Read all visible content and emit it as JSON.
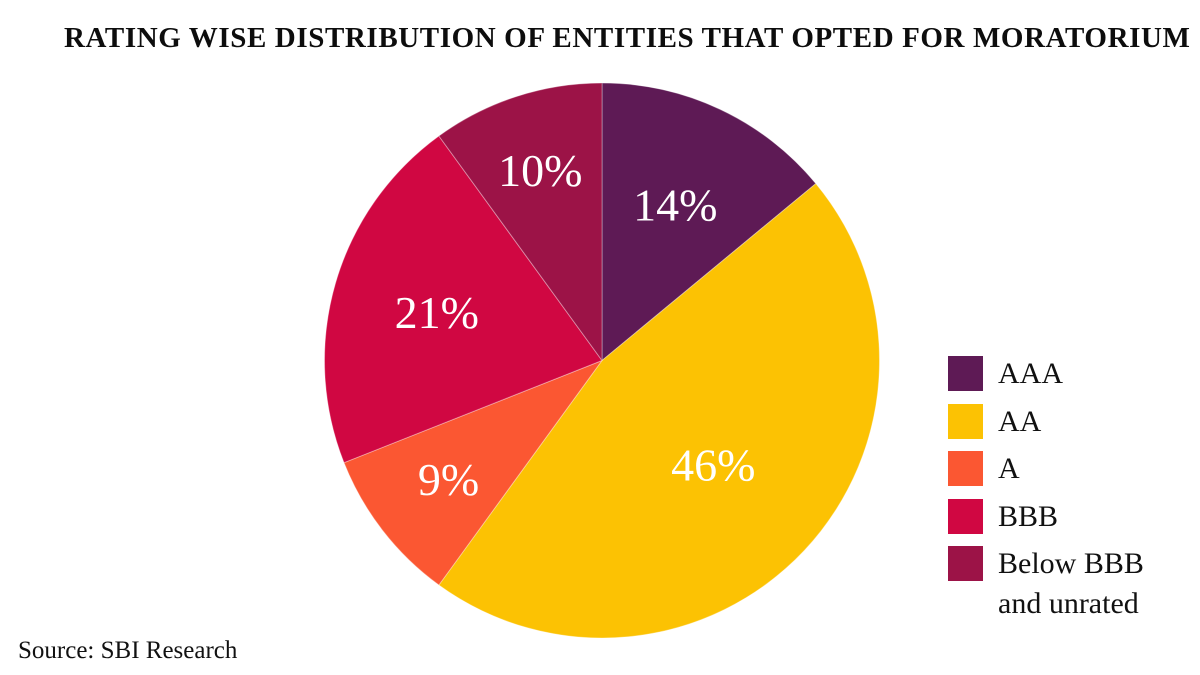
{
  "title": "RATING WISE DISTRIBUTION OF ENTITIES THAT OPTED FOR MORATORIUM",
  "source": "Source: SBI Research",
  "chart_data": {
    "type": "pie",
    "title": "RATING WISE DISTRIBUTION OF ENTITIES THAT OPTED FOR MORATORIUM",
    "categories": [
      "AAA",
      "AA",
      "A",
      "BBB",
      "Below BBB and unrated"
    ],
    "values": [
      14,
      46,
      9,
      21,
      10
    ],
    "slices": [
      {
        "label": "AAA",
        "value": 14,
        "display": "14%",
        "color": "#5E1A55"
      },
      {
        "label": "AA",
        "value": 46,
        "display": "46%",
        "color": "#FCC203"
      },
      {
        "label": "A",
        "value": 9,
        "display": "9%",
        "color": "#FB5732"
      },
      {
        "label": "BBB",
        "value": 21,
        "display": "21%",
        "color": "#D00742"
      },
      {
        "label": "Below BBB and unrated",
        "value": 10,
        "display": "10%",
        "color": "#9C1347"
      }
    ],
    "start_angle_deg": 0,
    "direction": "clockwise",
    "legend_position": "right",
    "label_color": "#ffffff",
    "layout": {
      "label_radius_fractions": [
        0.62,
        0.55,
        0.7,
        0.62,
        0.72
      ]
    }
  }
}
